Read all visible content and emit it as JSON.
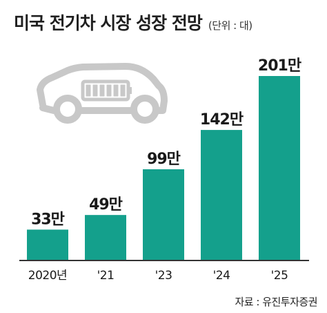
{
  "header": {
    "title": "미국 전기차 시장 성장 전망",
    "unit_note": "(단위 : 대)"
  },
  "footer": {
    "source": "자료 : 유진투자증권"
  },
  "icon": {
    "name": "electric-car-battery-icon",
    "color": "#c8c8c8"
  },
  "colors": {
    "bar": "#14a08c",
    "axis": "#333333"
  },
  "chart_data": {
    "type": "bar",
    "categories": [
      "2020년",
      "'21",
      "'23",
      "'24",
      "'25"
    ],
    "values": [
      33,
      49,
      99,
      142,
      201
    ],
    "value_labels": [
      "33만",
      "49만",
      "99만",
      "142만",
      "201만"
    ],
    "title": "미국 전기차 시장 성장 전망",
    "unit": "(단위 : 대)",
    "xlabel": "",
    "ylabel": "",
    "grid": false
  }
}
